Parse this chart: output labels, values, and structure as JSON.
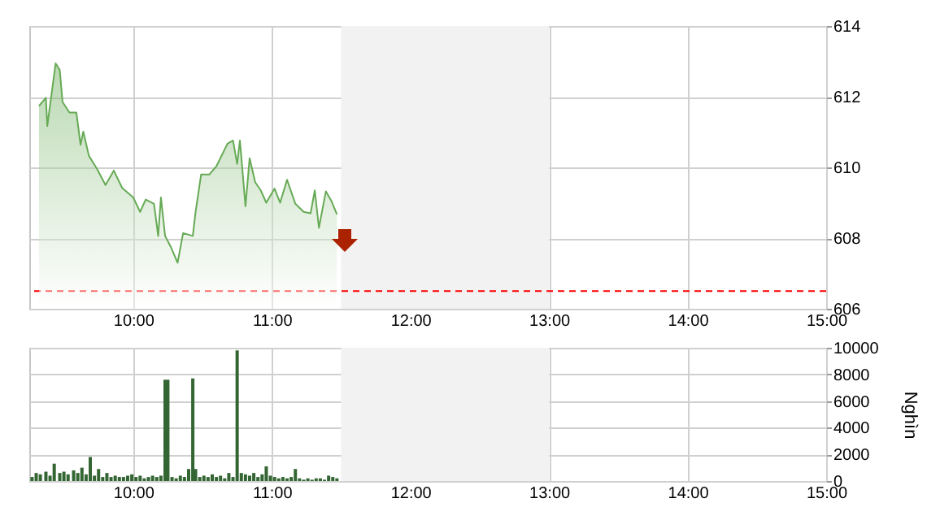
{
  "chart_data": [
    {
      "type": "area",
      "x": [
        9.32,
        9.37,
        9.38,
        9.44,
        9.47,
        9.49,
        9.54,
        9.59,
        9.62,
        9.64,
        9.68,
        9.74,
        9.8,
        9.86,
        9.92,
        10.0,
        10.05,
        10.09,
        10.15,
        10.18,
        10.2,
        10.23,
        10.27,
        10.32,
        10.36,
        10.43,
        10.45,
        10.49,
        10.55,
        10.6,
        10.68,
        10.72,
        10.75,
        10.77,
        10.81,
        10.84,
        10.88,
        10.92,
        10.96,
        11.02,
        11.06,
        11.11,
        11.17,
        11.23,
        11.28,
        11.31,
        11.34,
        11.39,
        11.43,
        11.47
      ],
      "series": [
        {
          "color": "#66aa55",
          "values": [
            611.74,
            611.97,
            611.17,
            612.94,
            612.76,
            611.85,
            611.55,
            611.55,
            610.64,
            611.01,
            610.33,
            609.95,
            609.5,
            609.91,
            609.42,
            609.15,
            608.74,
            609.09,
            608.97,
            608.06,
            609.15,
            608.06,
            607.76,
            607.3,
            608.14,
            608.06,
            608.74,
            609.8,
            609.8,
            610.03,
            610.67,
            610.76,
            610.1,
            610.76,
            608.9,
            610.26,
            609.58,
            609.35,
            609.0,
            609.4,
            609.0,
            609.65,
            608.97,
            608.74,
            608.7,
            609.35,
            608.29,
            609.32,
            609.05,
            608.67
          ]
        }
      ],
      "xlim": [
        9.25,
        15
      ],
      "xticks": [
        {
          "value": 10,
          "label": "10:00"
        },
        {
          "value": 11,
          "label": "11:00"
        },
        {
          "value": 12,
          "label": "12:00"
        },
        {
          "value": 13,
          "label": "13:00"
        },
        {
          "value": 14,
          "label": "14:00"
        },
        {
          "value": 15,
          "label": "15:00"
        }
      ],
      "ylim": [
        606,
        614
      ],
      "yticks": [
        606,
        608,
        610,
        612,
        614
      ],
      "grid": true,
      "ref_lines": [
        {
          "axis": "y",
          "value": 606.5,
          "color": "#ff0000",
          "line_style": "dashed"
        }
      ],
      "bands": [
        {
          "axis": "x",
          "from": 11.5,
          "to": 13,
          "color": "#f2f2f2"
        }
      ]
    },
    {
      "type": "bar",
      "ylabel": "Nghìn",
      "x": [
        9.27,
        9.3,
        9.33,
        9.37,
        9.4,
        9.43,
        9.47,
        9.5,
        9.53,
        9.57,
        9.6,
        9.63,
        9.66,
        9.69,
        9.72,
        9.75,
        9.78,
        9.81,
        9.84,
        9.87,
        9.9,
        9.93,
        9.96,
        9.99,
        10.02,
        10.05,
        10.08,
        10.11,
        10.14,
        10.17,
        10.2,
        10.23,
        10.25,
        10.28,
        10.31,
        10.34,
        10.37,
        10.4,
        10.43,
        10.45,
        10.48,
        10.51,
        10.54,
        10.57,
        10.6,
        10.63,
        10.66,
        10.69,
        10.72,
        10.75,
        10.78,
        10.81,
        10.84,
        10.87,
        10.9,
        10.93,
        10.96,
        10.99,
        11.02,
        11.05,
        11.08,
        11.11,
        11.14,
        11.17,
        11.2,
        11.23,
        11.26,
        11.29,
        11.32,
        11.35,
        11.38,
        11.41,
        11.44,
        11.47
      ],
      "series": [
        {
          "color": "#336633",
          "values": [
            300,
            600,
            500,
            700,
            400,
            1300,
            600,
            700,
            500,
            800,
            600,
            1000,
            500,
            1800,
            400,
            900,
            300,
            600,
            300,
            400,
            300,
            300,
            400,
            500,
            300,
            400,
            200,
            300,
            400,
            300,
            400,
            7600,
            7600,
            300,
            200,
            400,
            300,
            900,
            7700,
            900,
            300,
            400,
            300,
            500,
            300,
            400,
            200,
            600,
            300,
            9800,
            600,
            500,
            400,
            600,
            300,
            500,
            1100,
            400,
            300,
            200,
            300,
            200,
            300,
            900,
            200,
            100,
            200,
            100,
            200,
            200,
            100,
            400,
            300,
            200
          ]
        }
      ],
      "xlim": [
        9.25,
        15
      ],
      "xticks": [
        {
          "value": 10,
          "label": "10:00"
        },
        {
          "value": 11,
          "label": "11:00"
        },
        {
          "value": 12,
          "label": "12:00"
        },
        {
          "value": 13,
          "label": "13:00"
        },
        {
          "value": 14,
          "label": "14:00"
        },
        {
          "value": 15,
          "label": "15:00"
        }
      ],
      "ylim": [
        0,
        10000
      ],
      "yticks": [
        0,
        2000,
        4000,
        6000,
        8000,
        10000
      ],
      "grid": true,
      "bands": [
        {
          "axis": "x",
          "from": 11.5,
          "to": 13,
          "color": "#f2f2f2"
        }
      ]
    }
  ]
}
